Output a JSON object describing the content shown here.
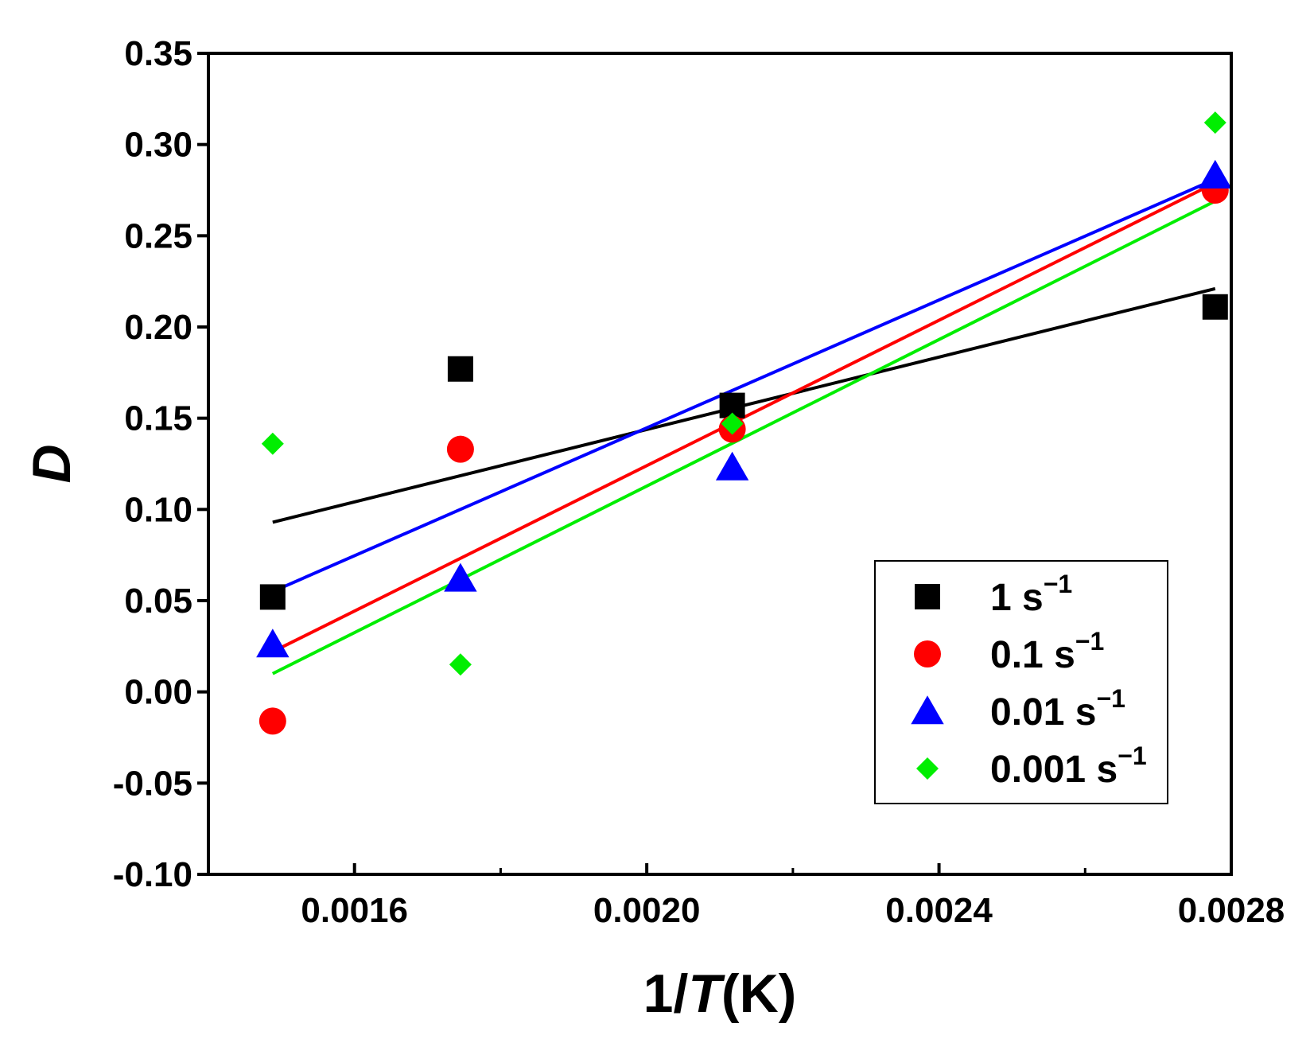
{
  "chart_data": {
    "type": "scatter",
    "xlabel_prefix": "1/",
    "xlabel_italic": "T",
    "xlabel_suffix": "(K)",
    "ylabel": "D",
    "xlim": [
      0.0014,
      0.0028
    ],
    "ylim": [
      -0.1,
      0.35
    ],
    "x_ticks": [
      0.0016,
      0.002,
      0.0024,
      0.0028
    ],
    "x_tick_labels": [
      "0.0016",
      "0.0020",
      "0.0024",
      "0.0028"
    ],
    "x_minor_ticks": [
      0.0018,
      0.0022,
      0.0026
    ],
    "y_ticks": [
      -0.1,
      -0.05,
      0.0,
      0.05,
      0.1,
      0.15,
      0.2,
      0.25,
      0.3,
      0.35
    ],
    "y_tick_labels": [
      "-0.10",
      "-0.05",
      "0.00",
      "0.05",
      "0.10",
      "0.15",
      "0.20",
      "0.25",
      "0.30",
      "0.35"
    ],
    "grid": false,
    "legend_position": "bottom-right",
    "x": [
      0.001488,
      0.001745,
      0.002117,
      0.002778
    ],
    "series": [
      {
        "name": "1 s",
        "superscript": "−1",
        "marker": "square",
        "color": "#000000",
        "values": [
          0.052,
          0.177,
          0.157,
          0.211
        ],
        "fit": [
          [
            0.001488,
            0.093
          ],
          [
            0.002778,
            0.221
          ]
        ]
      },
      {
        "name": "0.1 s",
        "superscript": "−1",
        "marker": "circle",
        "color": "#ff0000",
        "values": [
          -0.016,
          0.133,
          0.144,
          0.275
        ],
        "fit": [
          [
            0.001488,
            0.022
          ],
          [
            0.002778,
            0.279
          ]
        ]
      },
      {
        "name": "0.01 s",
        "superscript": "−1",
        "marker": "triangle",
        "color": "#0000ff",
        "values": [
          0.026,
          0.062,
          0.123,
          0.283
        ],
        "fit": [
          [
            0.001488,
            0.055
          ],
          [
            0.002778,
            0.281
          ]
        ]
      },
      {
        "name": "0.001 s",
        "superscript": "−1",
        "marker": "diamond",
        "color": "#00ee00",
        "values": [
          0.136,
          0.015,
          0.147,
          0.312
        ],
        "fit": [
          [
            0.001488,
            0.01
          ],
          [
            0.002778,
            0.269
          ]
        ]
      }
    ]
  }
}
